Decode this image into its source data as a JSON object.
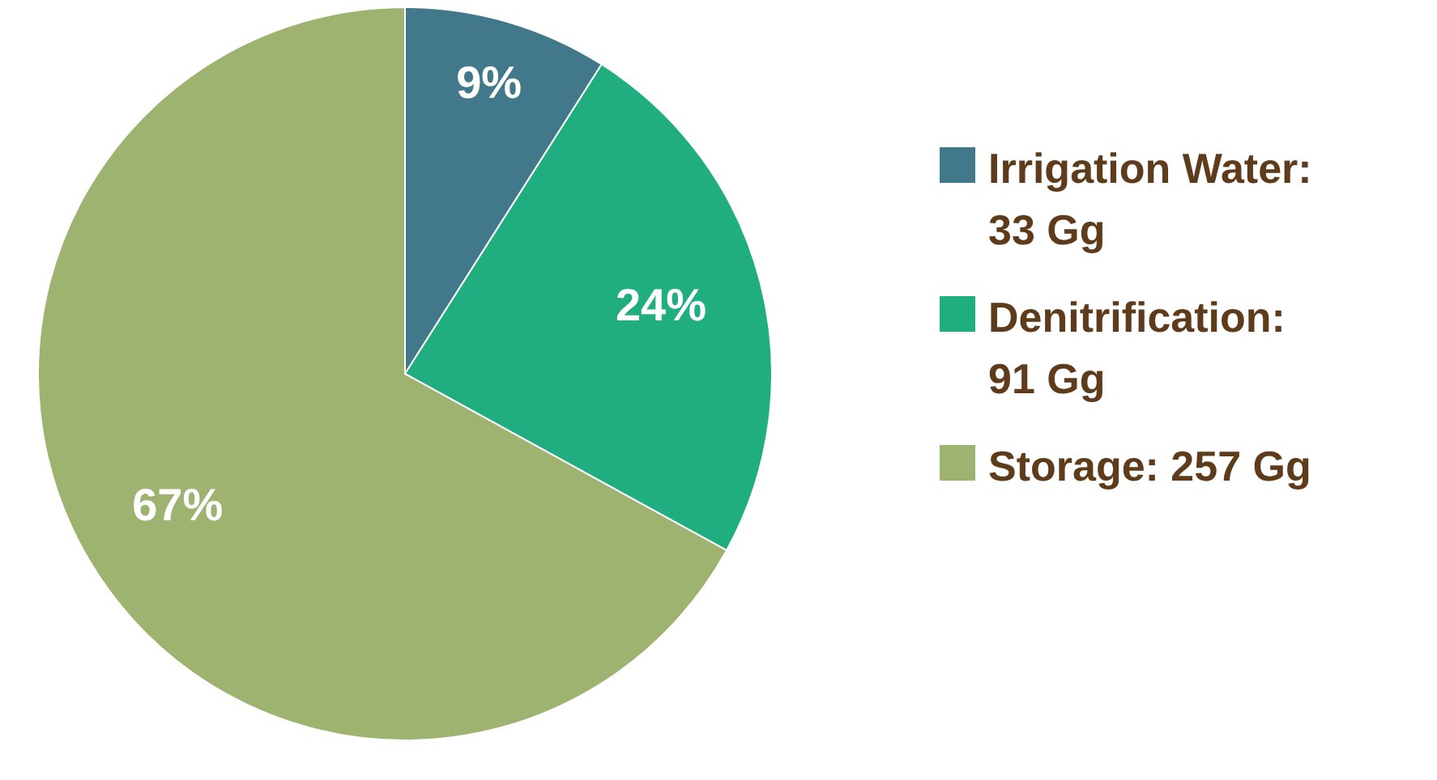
{
  "chart_data": {
    "type": "pie",
    "categories": [
      "Irrigation Water: 33 Gg",
      "Denitrification: 91 Gg",
      "Storage: 257 Gg"
    ],
    "values": [
      9,
      24,
      67
    ],
    "colors": [
      "#41788a",
      "#20ad80",
      "#9db36f"
    ],
    "value_labels": [
      "9%",
      "24%",
      "67%"
    ],
    "legend": "right"
  }
}
